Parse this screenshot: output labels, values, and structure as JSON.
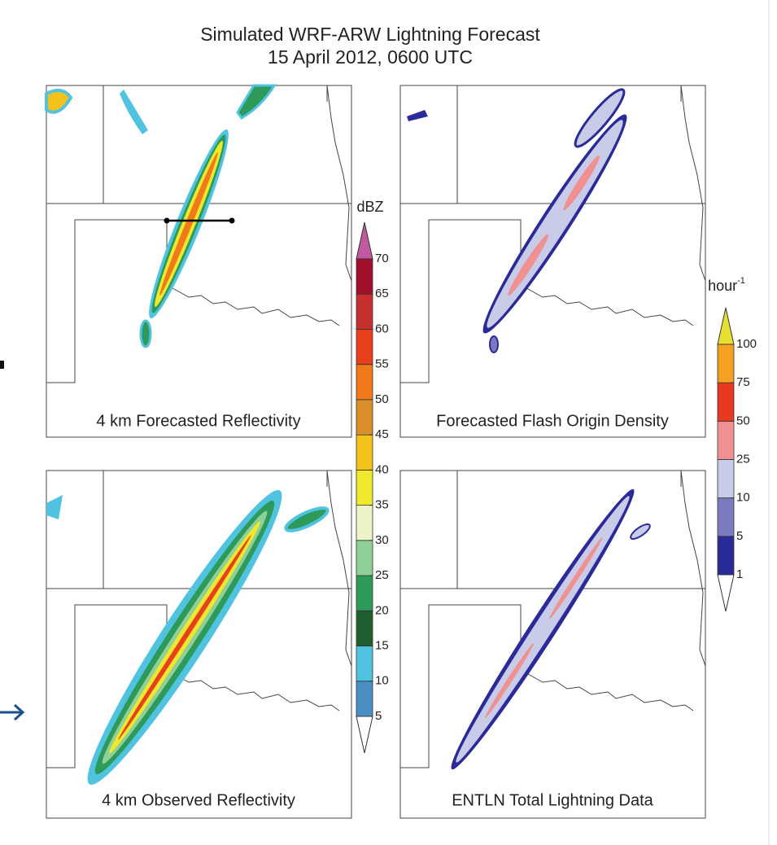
{
  "title": [
    "Simulated WRF-ARW Lightning Forecast",
    "15 April 2012, 0600 UTC"
  ],
  "panels": [
    {
      "label": "4 km Forecasted Reflectivity"
    },
    {
      "label": "Forecasted Flash Origin Density"
    },
    {
      "label": "4 km Observed Reflectivity"
    },
    {
      "label": "ENTLN Total Lightning Data"
    }
  ],
  "colorbars": [
    {
      "unit": "dBZ",
      "ticks": [
        5,
        10,
        15,
        20,
        25,
        30,
        35,
        40,
        45,
        50,
        55,
        60,
        65,
        70
      ],
      "colors": [
        "#ffffff",
        "#4a8fc4",
        "#4fc3e0",
        "#1f5e2e",
        "#2e9a5a",
        "#8fcf98",
        "#eef2c8",
        "#f0e82a",
        "#f5c21a",
        "#d9902a",
        "#f07a1a",
        "#e8401e",
        "#c83030",
        "#a0102a",
        "#c05aa0"
      ]
    },
    {
      "unit": "hour",
      "unit_exponent": "-1",
      "ticks": [
        1,
        5,
        10,
        25,
        50,
        75,
        100
      ],
      "colors": [
        "#ffffff",
        "#2a2a9a",
        "#7a7ac0",
        "#c8cce8",
        "#f09090",
        "#e83a20",
        "#f5a020",
        "#e8e030"
      ]
    }
  ]
}
